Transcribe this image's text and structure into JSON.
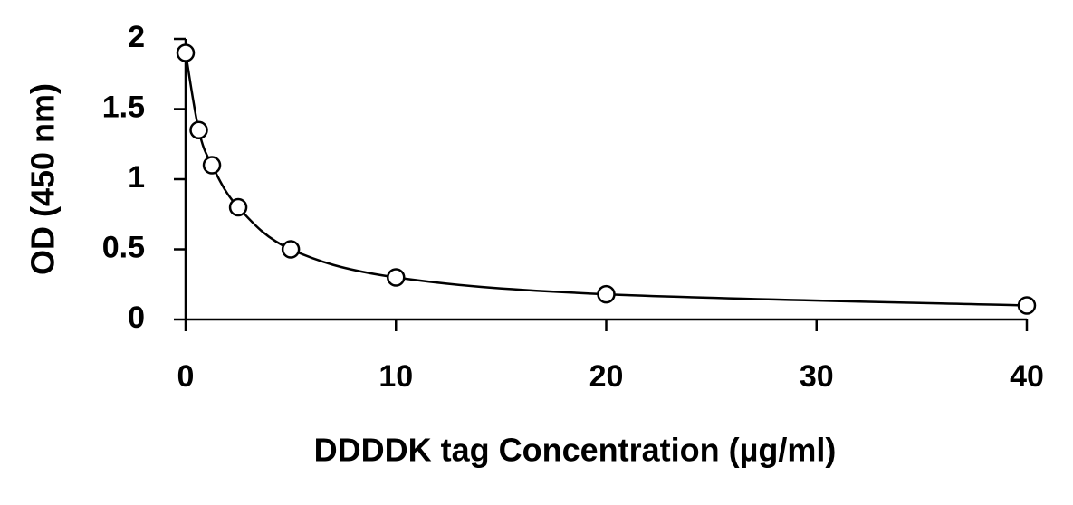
{
  "chart_data": {
    "type": "line",
    "x_label": "DDDDK tag Concentration (µg/ml)",
    "y_label": "OD (450 nm)",
    "x": [
      0,
      0.625,
      1.25,
      2.5,
      5,
      10,
      20,
      40
    ],
    "values": [
      1.9,
      1.35,
      1.1,
      0.8,
      0.5,
      0.3,
      0.18,
      0.1
    ],
    "color": "#000000",
    "xlim": [
      0,
      40
    ],
    "xticks": [
      0,
      10,
      20,
      30,
      40
    ],
    "ylim": [
      0,
      2
    ],
    "yticks": [
      0,
      0.5,
      1,
      1.5,
      2
    ],
    "grid": false
  }
}
